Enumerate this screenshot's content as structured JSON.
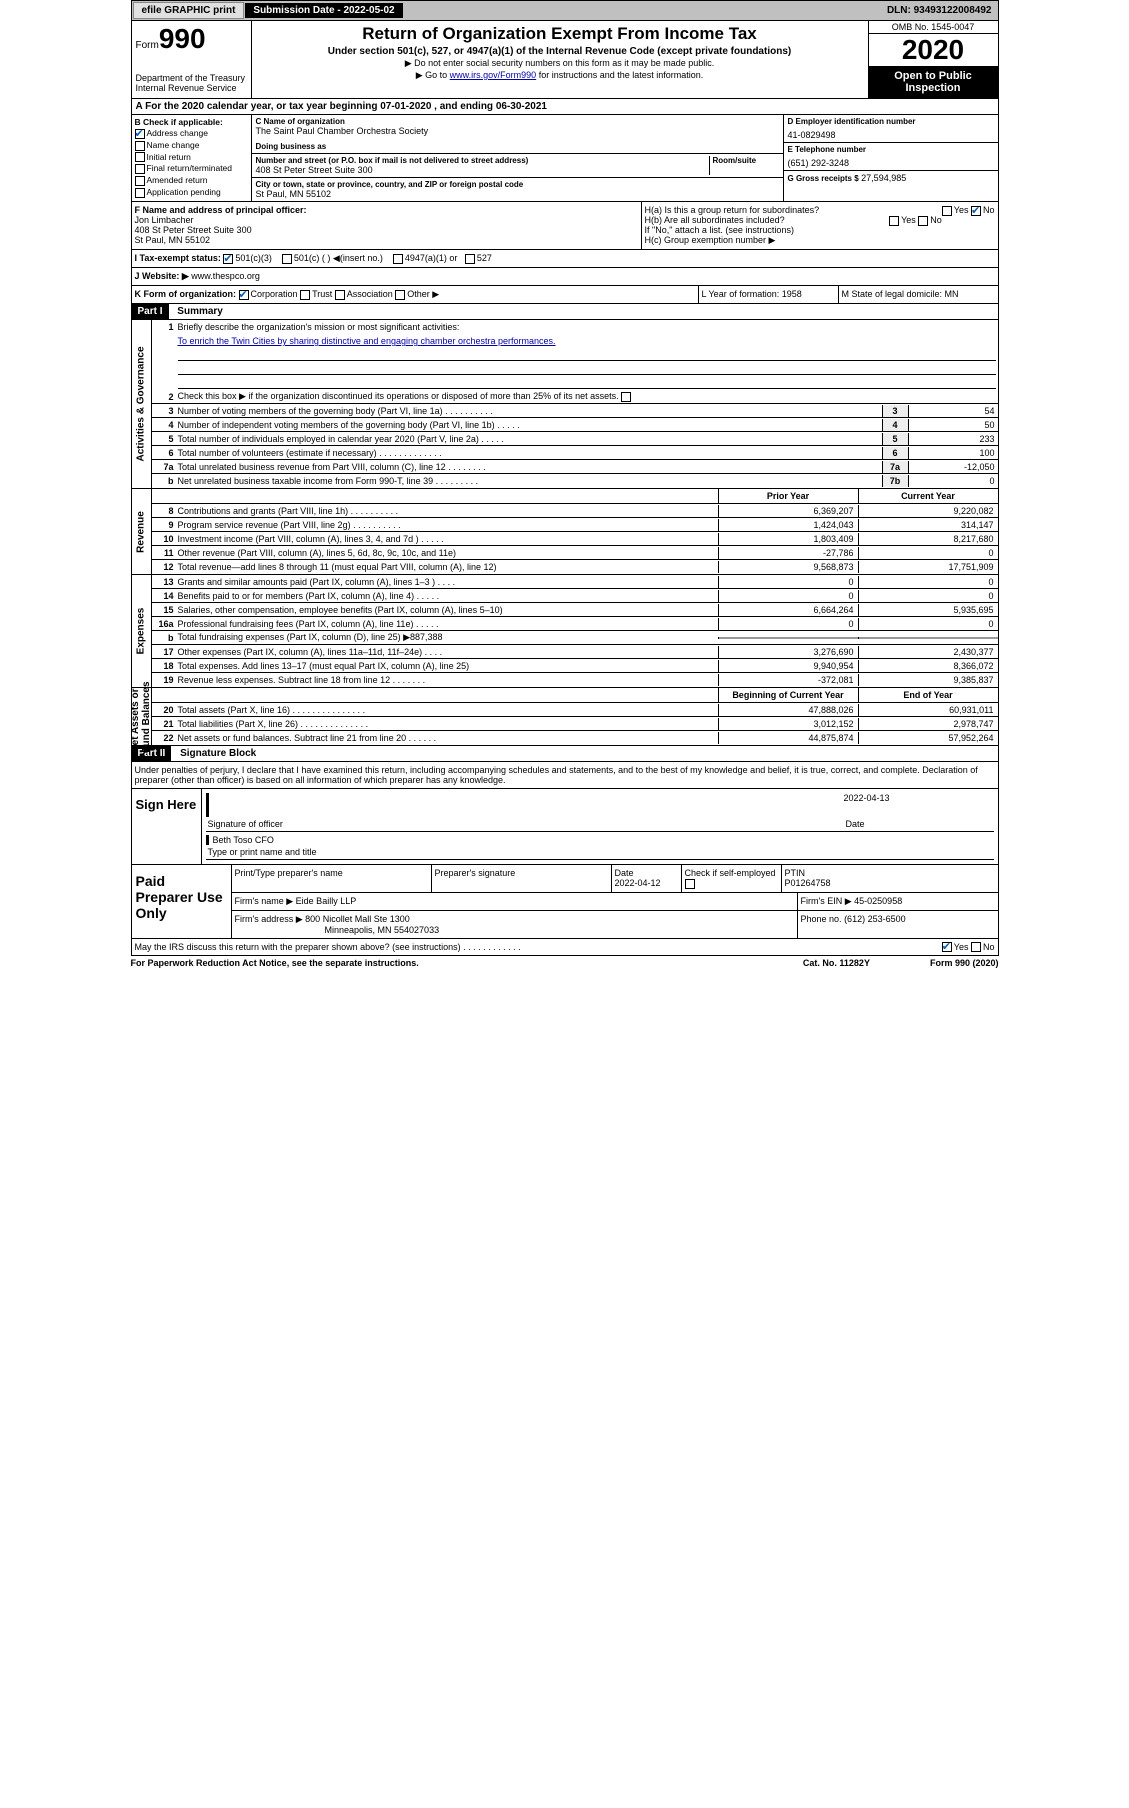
{
  "topbar": {
    "efile": "efile GRAPHIC print",
    "sub_label": "Submission Date",
    "sub_date": "2022-05-02",
    "dln_label": "DLN:",
    "dln": "93493122008492"
  },
  "header": {
    "form_label": "Form",
    "form_num": "990",
    "dept": "Department of the Treasury\nInternal Revenue Service",
    "title": "Return of Organization Exempt From Income Tax",
    "sub1": "Under section 501(c), 527, or 4947(a)(1) of the Internal Revenue Code (except private foundations)",
    "sub2a": "▶ Do not enter social security numbers on this form as it may be made public.",
    "sub2b_pre": "▶ Go to ",
    "sub2b_link": "www.irs.gov/Form990",
    "sub2b_post": " for instructions and the latest information.",
    "omb": "OMB No. 1545-0047",
    "year": "2020",
    "open": "Open to Public Inspection"
  },
  "rowA": "A For the 2020 calendar year, or tax year beginning 07-01-2020    , and ending 06-30-2021",
  "boxB": {
    "label": "B Check if applicable:",
    "items": [
      "Address change",
      "Name change",
      "Initial return",
      "Final return/terminated",
      "Amended return",
      "Application pending"
    ]
  },
  "boxC": {
    "name_lbl": "C Name of organization",
    "name": "The Saint Paul Chamber Orchestra Society",
    "dba_lbl": "Doing business as",
    "street_lbl": "Number and street (or P.O. box if mail is not delivered to street address)",
    "room_lbl": "Room/suite",
    "street": "408 St Peter Street Suite 300",
    "city_lbl": "City or town, state or province, country, and ZIP or foreign postal code",
    "city": "St Paul, MN  55102"
  },
  "boxD": {
    "lbl": "D Employer identification number",
    "val": "41-0829498"
  },
  "boxE": {
    "lbl": "E Telephone number",
    "val": "(651) 292-3248"
  },
  "boxG": {
    "lbl": "G Gross receipts $",
    "val": "27,594,985"
  },
  "boxF": {
    "lbl": "F Name and address of principal officer:",
    "name": "Jon Limbacher",
    "addr1": "408 St Peter Street Suite 300",
    "addr2": "St Paul, MN  55102"
  },
  "boxH": {
    "a": "H(a)  Is this a group return for subordinates?",
    "b": "H(b)  Are all subordinates included?",
    "b2": "If \"No,\" attach a list. (see instructions)",
    "c": "H(c)  Group exemption number ▶"
  },
  "rowI": {
    "lbl": "I   Tax-exempt status:",
    "o1": "501(c)(3)",
    "o2": "501(c) (  ) ◀(insert no.)",
    "o3": "4947(a)(1) or",
    "o4": "527"
  },
  "rowJ": {
    "lbl": "J   Website: ▶",
    "val": "www.thespco.org"
  },
  "rowK": {
    "lbl": "K Form of organization:",
    "o1": "Corporation",
    "o2": "Trust",
    "o3": "Association",
    "o4": "Other ▶",
    "L": "L Year of formation: 1958",
    "M": "M State of legal domicile: MN"
  },
  "part1": {
    "label": "Part I",
    "title": "Summary"
  },
  "summary": {
    "l1": "Briefly describe the organization's mission or most significant activities:",
    "mission": "To enrich the Twin Cities by sharing distinctive and engaging chamber orchestra performances.",
    "l2": "Check this box ▶       if the organization discontinued its operations or disposed of more than 25% of its net assets.",
    "rows": [
      {
        "n": "3",
        "t": "Number of voting members of the governing body (Part VI, line 1a)  .  .  .  .  .  .  .  .  .  .",
        "r": "3",
        "v": "54"
      },
      {
        "n": "4",
        "t": "Number of independent voting members of the governing body (Part VI, line 1b)  .  .  .  .  .",
        "r": "4",
        "v": "50"
      },
      {
        "n": "5",
        "t": "Total number of individuals employed in calendar year 2020 (Part V, line 2a)  .  .  .  .  .",
        "r": "5",
        "v": "233"
      },
      {
        "n": "6",
        "t": "Total number of volunteers (estimate if necessary)  .  .  .  .  .  .  .  .  .  .  .  .  .",
        "r": "6",
        "v": "100"
      },
      {
        "n": "7a",
        "t": "Total unrelated business revenue from Part VIII, column (C), line 12  .  .  .  .  .  .  .  .",
        "r": "7a",
        "v": "-12,050"
      },
      {
        "n": "b",
        "t": "Net unrelated business taxable income from Form 990-T, line 39  .  .  .  .  .  .  .  .  .",
        "r": "7b",
        "v": "0"
      }
    ]
  },
  "revenue": {
    "h1": "Prior Year",
    "h2": "Current Year",
    "rows": [
      {
        "n": "8",
        "t": "Contributions and grants (Part VIII, line 1h)  .  .  .  .  .  .  .  .  .  .",
        "v1": "6,369,207",
        "v2": "9,220,082"
      },
      {
        "n": "9",
        "t": "Program service revenue (Part VIII, line 2g)  .  .  .  .  .  .  .  .  .  .",
        "v1": "1,424,043",
        "v2": "314,147"
      },
      {
        "n": "10",
        "t": "Investment income (Part VIII, column (A), lines 3, 4, and 7d )  .  .  .  .  .",
        "v1": "1,803,409",
        "v2": "8,217,680"
      },
      {
        "n": "11",
        "t": "Other revenue (Part VIII, column (A), lines 5, 6d, 8c, 9c, 10c, and 11e)",
        "v1": "-27,786",
        "v2": "0"
      },
      {
        "n": "12",
        "t": "Total revenue—add lines 8 through 11 (must equal Part VIII, column (A), line 12)",
        "v1": "9,568,873",
        "v2": "17,751,909"
      }
    ]
  },
  "expenses": {
    "rows": [
      {
        "n": "13",
        "t": "Grants and similar amounts paid (Part IX, column (A), lines 1–3 )  .  .  .  .",
        "v1": "0",
        "v2": "0"
      },
      {
        "n": "14",
        "t": "Benefits paid to or for members (Part IX, column (A), line 4)  .  .  .  .  .",
        "v1": "0",
        "v2": "0"
      },
      {
        "n": "15",
        "t": "Salaries, other compensation, employee benefits (Part IX, column (A), lines 5–10)",
        "v1": "6,664,264",
        "v2": "5,935,695"
      },
      {
        "n": "16a",
        "t": "Professional fundraising fees (Part IX, column (A), line 11e)  .  .  .  .  .",
        "v1": "0",
        "v2": "0"
      },
      {
        "n": "b",
        "t": "Total fundraising expenses (Part IX, column (D), line 25) ▶887,388",
        "v1": "gray",
        "v2": "gray"
      },
      {
        "n": "17",
        "t": "Other expenses (Part IX, column (A), lines 11a–11d, 11f–24e)  .  .  .  .",
        "v1": "3,276,690",
        "v2": "2,430,377"
      },
      {
        "n": "18",
        "t": "Total expenses. Add lines 13–17 (must equal Part IX, column (A), line 25)",
        "v1": "9,940,954",
        "v2": "8,366,072"
      },
      {
        "n": "19",
        "t": "Revenue less expenses. Subtract line 18 from line 12  .  .  .  .  .  .  .",
        "v1": "-372,081",
        "v2": "9,385,837"
      }
    ]
  },
  "netassets": {
    "h1": "Beginning of Current Year",
    "h2": "End of Year",
    "rows": [
      {
        "n": "20",
        "t": "Total assets (Part X, line 16)  .  .  .  .  .  .  .  .  .  .  .  .  .  .  .",
        "v1": "47,888,026",
        "v2": "60,931,011"
      },
      {
        "n": "21",
        "t": "Total liabilities (Part X, line 26)  .  .  .  .  .  .  .  .  .  .  .  .  .  .",
        "v1": "3,012,152",
        "v2": "2,978,747"
      },
      {
        "n": "22",
        "t": "Net assets or fund balances. Subtract line 21 from line 20  .  .  .  .  .  .",
        "v1": "44,875,874",
        "v2": "57,952,264"
      }
    ]
  },
  "part2": {
    "label": "Part II",
    "title": "Signature Block"
  },
  "sig": {
    "perjury": "Under penalties of perjury, I declare that I have examined this return, including accompanying schedules and statements, and to the best of my knowledge and belief, it is true, correct, and complete. Declaration of preparer (other than officer) is based on all information of which preparer has any knowledge.",
    "sign_lbl": "Sign Here",
    "sig_of": "Signature of officer",
    "date_lbl": "Date",
    "date": "2022-04-13",
    "name": "Beth Toso CFO",
    "name_lbl": "Type or print name and title"
  },
  "prep": {
    "lbl": "Paid Preparer Use Only",
    "h1": "Print/Type preparer's name",
    "h2": "Preparer's signature",
    "h3": "Date",
    "h3v": "2022-04-12",
    "h4": "Check        if self-employed",
    "h5": "PTIN",
    "h5v": "P01264758",
    "firm_lbl": "Firm's name    ▶",
    "firm": "Eide Bailly LLP",
    "ein_lbl": "Firm's EIN ▶",
    "ein": "45-0250958",
    "addr_lbl": "Firm's address ▶",
    "addr1": "800 Nicollet Mall Ste 1300",
    "addr2": "Minneapolis, MN  554027033",
    "phone_lbl": "Phone no.",
    "phone": "(612) 253-6500"
  },
  "discuss": "May the IRS discuss this return with the preparer shown above? (see instructions)  .  .  .  .  .  .  .  .  .  .  .  .",
  "footer": {
    "f1": "For Paperwork Reduction Act Notice, see the separate instructions.",
    "f2": "Cat. No. 11282Y",
    "f3": "Form 990 (2020)"
  }
}
